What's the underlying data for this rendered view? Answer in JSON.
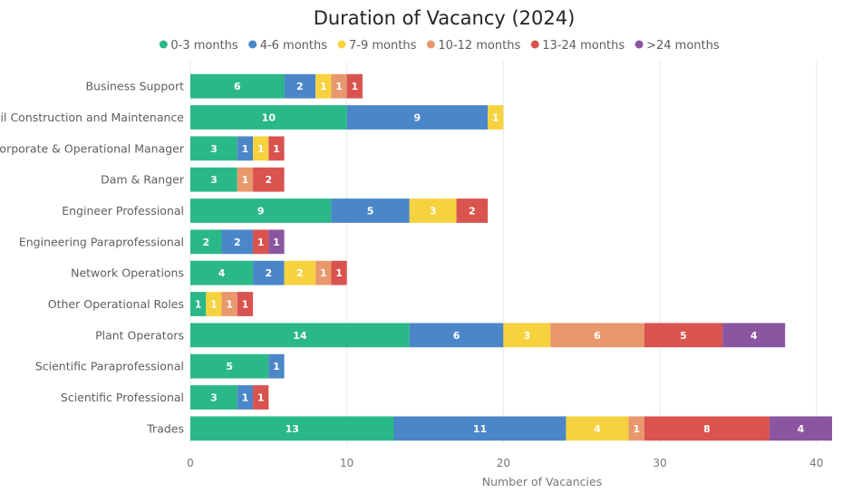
{
  "chart_data": {
    "type": "bar",
    "orientation": "horizontal",
    "stacked": true,
    "title": "Duration of Vacancy (2024)",
    "xlabel": "Number of Vacancies",
    "ylabel": "",
    "xlim": [
      0,
      41
    ],
    "xticks": [
      0,
      10,
      20,
      30,
      40
    ],
    "grid": true,
    "legend_position": "top-center",
    "categories": [
      "Business Support",
      "Civil Construction and Maintenance",
      "Corporate & Operational Manager",
      "Dam & Ranger",
      "Engineer Professional",
      "Engineering Paraprofessional",
      "Network Operations",
      "Other Operational Roles",
      "Plant Operators",
      "Scientific Paraprofessional",
      "Scientific Professional",
      "Trades"
    ],
    "series": [
      {
        "name": "0-3 months",
        "color": "#2ab886",
        "values": [
          6,
          10,
          3,
          3,
          9,
          2,
          4,
          1,
          14,
          5,
          3,
          13
        ]
      },
      {
        "name": "4-6 months",
        "color": "#4b86c9",
        "values": [
          2,
          9,
          1,
          0,
          5,
          2,
          2,
          0,
          6,
          1,
          1,
          11
        ]
      },
      {
        "name": "7-9 months",
        "color": "#f6d23f",
        "values": [
          1,
          1,
          1,
          0,
          3,
          0,
          2,
          1,
          3,
          0,
          0,
          4
        ]
      },
      {
        "name": "10-12 months",
        "color": "#e8986c",
        "values": [
          1,
          0,
          0,
          1,
          0,
          0,
          1,
          1,
          6,
          0,
          0,
          1
        ]
      },
      {
        "name": "13-24 months",
        "color": "#d9534f",
        "values": [
          1,
          0,
          1,
          2,
          2,
          1,
          1,
          1,
          5,
          0,
          1,
          8
        ]
      },
      {
        "name": ">24 months",
        "color": "#8b55a0",
        "values": [
          0,
          0,
          0,
          0,
          0,
          1,
          0,
          0,
          4,
          0,
          0,
          4
        ]
      }
    ]
  }
}
